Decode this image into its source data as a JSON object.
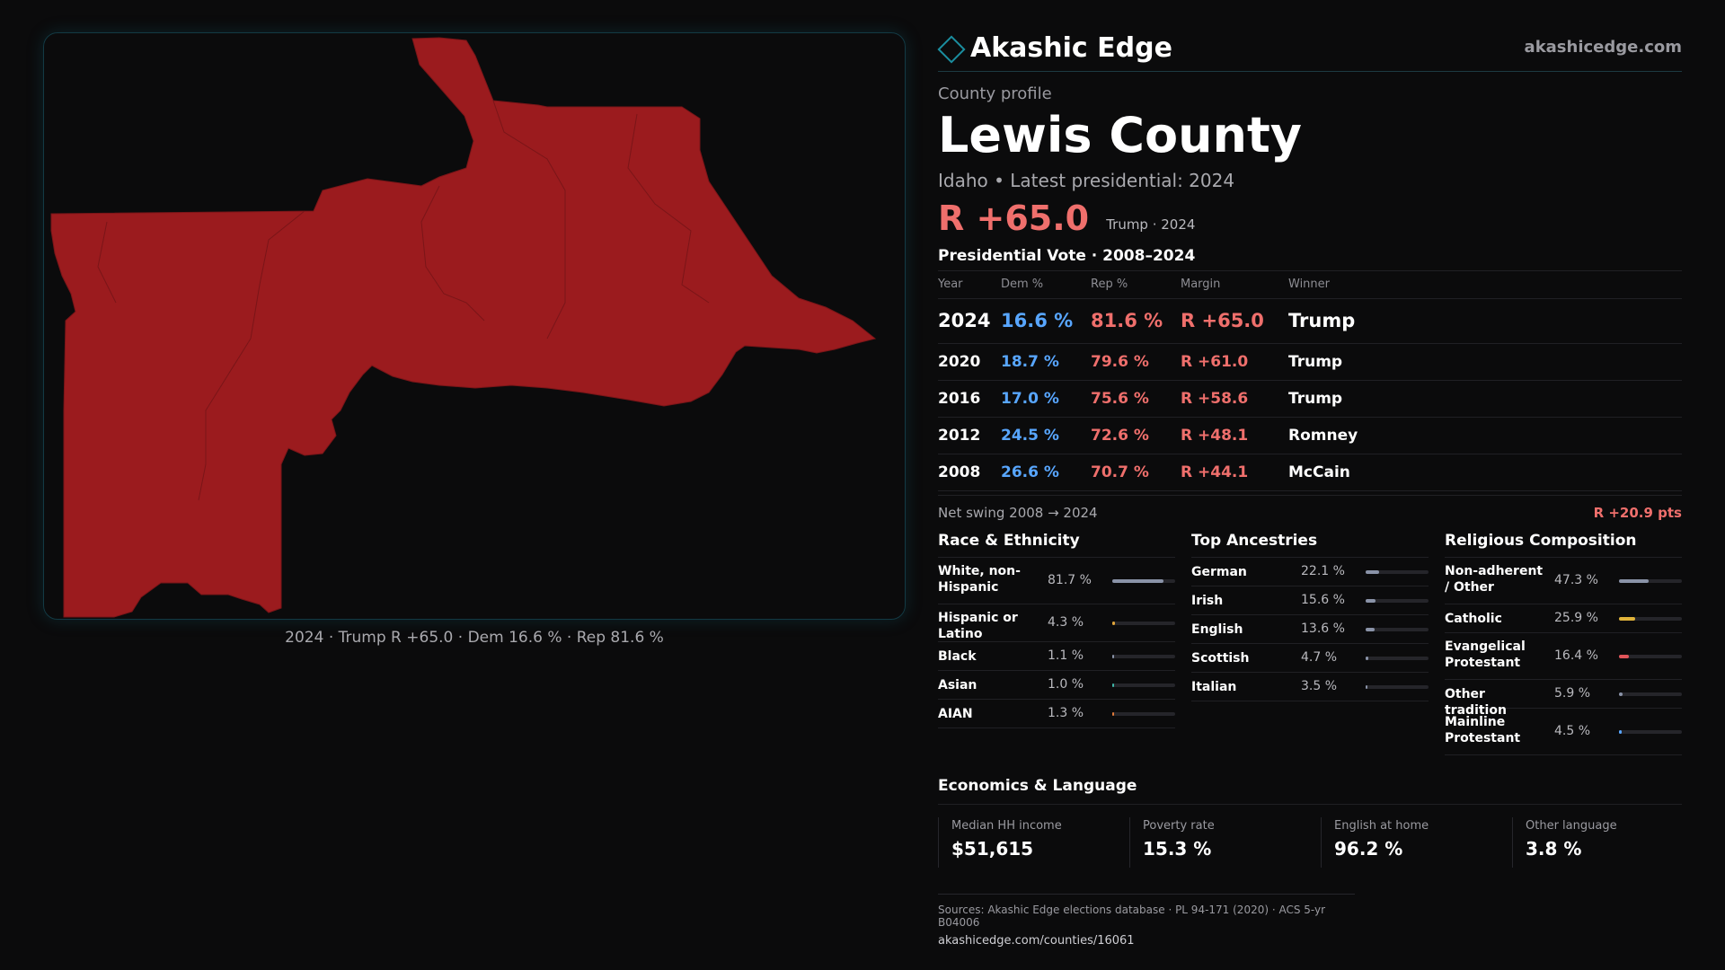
{
  "map": {
    "caption": "2024 · Trump R +65.0 · Dem 16.6 % · Rep 81.6 %",
    "fill_color": "#9b1b1e"
  },
  "brand": {
    "name": "Akashic Edge",
    "url": "akashicedge.com",
    "icon": "diamond-icon"
  },
  "profile": {
    "eyebrow": "County profile",
    "county": "Lewis County",
    "subtitle": "Idaho • Latest presidential: 2024",
    "margin": "R +65.0",
    "margin_note": "Trump · 2024"
  },
  "votes": {
    "title": "Presidential Vote · 2008–2024",
    "headers": [
      "Year",
      "Dem %",
      "Rep %",
      "Margin",
      "Winner"
    ],
    "rows": [
      [
        "2024",
        "16.6 %",
        "81.6 %",
        "R +65.0",
        "Trump"
      ],
      [
        "2020",
        "18.7 %",
        "79.6 %",
        "R +61.0",
        "Trump"
      ],
      [
        "2016",
        "17.0 %",
        "75.6 %",
        "R +58.6",
        "Trump"
      ],
      [
        "2012",
        "24.5 %",
        "72.6 %",
        "R +48.1",
        "Romney"
      ],
      [
        "2008",
        "26.6 %",
        "70.7 %",
        "R +44.1",
        "McCain"
      ]
    ],
    "swing_label": "Net swing 2008 → 2024",
    "swing_value": "R +20.9 pts"
  },
  "race": {
    "title": "Race & Ethnicity",
    "items": [
      {
        "name": "White, non-Hispanic",
        "pct": "81.7 %",
        "share": 0.817,
        "color": "#8a93a8"
      },
      {
        "name": "Hispanic or Latino",
        "pct": "4.3 %",
        "share": 0.043,
        "color": "#e0a43a"
      },
      {
        "name": "Black",
        "pct": "1.1 %",
        "share": 0.011,
        "color": "#8a93a8"
      },
      {
        "name": "Asian",
        "pct": "1.0 %",
        "share": 0.01,
        "color": "#3fb6a8"
      },
      {
        "name": "AIAN",
        "pct": "1.3 %",
        "share": 0.013,
        "color": "#e07a3a"
      }
    ]
  },
  "ancestry": {
    "title": "Top Ancestries",
    "items": [
      {
        "name": "German",
        "pct": "22.1 %",
        "share": 0.221,
        "color": "#8a93a8"
      },
      {
        "name": "Irish",
        "pct": "15.6 %",
        "share": 0.156,
        "color": "#8a93a8"
      },
      {
        "name": "English",
        "pct": "13.6 %",
        "share": 0.136,
        "color": "#8a93a8"
      },
      {
        "name": "Scottish",
        "pct": "4.7 %",
        "share": 0.047,
        "color": "#8a93a8"
      },
      {
        "name": "Italian",
        "pct": "3.5 %",
        "share": 0.035,
        "color": "#8a93a8"
      }
    ]
  },
  "religion": {
    "title": "Religious Composition",
    "items": [
      {
        "name": "Non-adherent / Other",
        "pct": "47.3 %",
        "share": 0.473,
        "color": "#8a93a8"
      },
      {
        "name": "Catholic",
        "pct": "25.9 %",
        "share": 0.259,
        "color": "#e0b43a"
      },
      {
        "name": "Evangelical Protestant",
        "pct": "16.4 %",
        "share": 0.164,
        "color": "#e0555a"
      },
      {
        "name": "Other tradition",
        "pct": "5.9 %",
        "share": 0.059,
        "color": "#8a93a8"
      },
      {
        "name": "Mainline Protestant",
        "pct": "4.5 %",
        "share": 0.045,
        "color": "#58a6ff"
      }
    ]
  },
  "economics": {
    "title": "Economics & Language",
    "stats": [
      {
        "label": "Median HH income",
        "value": "$51,615"
      },
      {
        "label": "Poverty rate",
        "value": "15.3 %"
      },
      {
        "label": "English at home",
        "value": "96.2 %"
      },
      {
        "label": "Other language",
        "value": "3.8 %"
      }
    ]
  },
  "sources": {
    "text": "Sources: Akashic Edge elections database · PL 94-171 (2020) · ACS 5-yr B04006",
    "url": "akashicedge.com/counties/16061"
  }
}
